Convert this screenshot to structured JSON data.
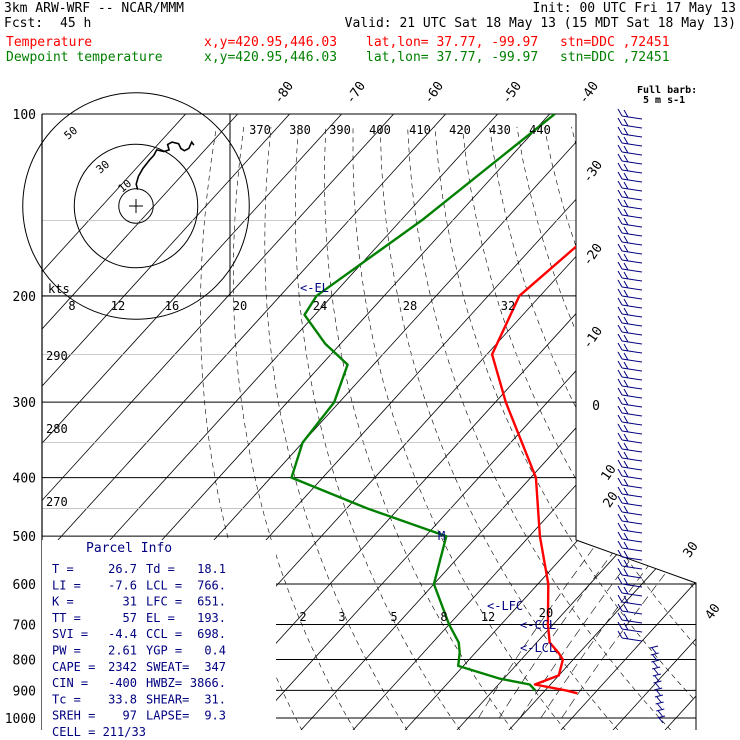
{
  "header": {
    "model": "3km ARW-WRF -- NCAR/MMM",
    "init": "Init: 00 UTC Fri 17 May 13",
    "fcst_label": "Fcst:",
    "fcst_value": "45 h",
    "valid": "Valid: 21 UTC Sat 18 May 13 (15 MDT Sat 18 May 13)"
  },
  "legend": [
    {
      "name": "Temperature",
      "xy": "x,y=420.95,446.03",
      "latlon": "lat,lon= 37.77, -99.97",
      "stn": "stn=DDC ,72451",
      "color": "#ff0000"
    },
    {
      "name": "Dewpoint temperature",
      "xy": "x,y=420.95,446.03",
      "latlon": "lat,lon= 37.77, -99.97",
      "stn": "stn=DDC ,72451",
      "color": "#008000"
    }
  ],
  "barb_note": {
    "line1": "Full barb:",
    "line2": "5 m s-1"
  },
  "chart_data": {
    "type": "line",
    "chart_kind": "skew-T log-p sounding",
    "pressure_levels": [
      "100",
      "200",
      "300",
      "400",
      "500",
      "600",
      "700",
      "800",
      "900",
      "1000"
    ],
    "isotherm_labels": [
      "-80",
      "-70",
      "-60",
      "-50",
      "-40",
      "-30",
      "-20",
      "-10",
      "0",
      "10",
      "20",
      "30",
      "40"
    ],
    "theta_labels": [
      "370",
      "380",
      "390",
      "400",
      "410",
      "420",
      "430",
      "440"
    ],
    "hodo_speed_labels": [
      "8",
      "12",
      "16",
      "20",
      "24",
      "28",
      "32"
    ],
    "hodo_axis_label": "kts",
    "hodo_ring_labels": [
      "10",
      "30",
      "50"
    ],
    "mixing_ratio_labels": [
      "2",
      "3",
      "5",
      "8",
      "12",
      "20"
    ],
    "theta_left_labels": [
      "290",
      "280",
      "270"
    ],
    "parcel_labels": {
      "el": "<-EL",
      "lfc": "<-LFC",
      "ccl": "<-CCL",
      "lcl": "<-LCL",
      "m": "M"
    },
    "series": [
      {
        "name": "Temperature",
        "color": "#ff0000",
        "points": [
          [
            100,
            -46
          ],
          [
            150,
            -50.5
          ],
          [
            200,
            -54
          ],
          [
            250,
            -49
          ],
          [
            300,
            -38
          ],
          [
            400,
            -19
          ],
          [
            500,
            -8
          ],
          [
            600,
            2
          ],
          [
            700,
            9
          ],
          [
            750,
            12.5
          ],
          [
            780,
            16
          ],
          [
            800,
            18
          ],
          [
            850,
            20
          ],
          [
            880,
            17
          ],
          [
            900,
            24
          ],
          [
            910,
            26.7
          ]
        ]
      },
      {
        "name": "Dewpoint temperature",
        "color": "#008000",
        "points": [
          [
            100,
            -79
          ],
          [
            150,
            -86
          ],
          [
            200,
            -93
          ],
          [
            215,
            -92
          ],
          [
            240,
            -83
          ],
          [
            260,
            -75
          ],
          [
            300,
            -71
          ],
          [
            350,
            -70
          ],
          [
            400,
            -66
          ],
          [
            450,
            -46
          ],
          [
            500,
            -26
          ],
          [
            600,
            -20
          ],
          [
            700,
            -10
          ],
          [
            750,
            -5
          ],
          [
            780,
            -3
          ],
          [
            820,
            -1
          ],
          [
            860,
            9
          ],
          [
            880,
            16
          ],
          [
            900,
            18.1
          ]
        ]
      }
    ],
    "hodograph": [
      [
        -1.0,
        -1.5
      ],
      [
        -1.2,
        -0.8
      ],
      [
        -0.9,
        0.2
      ],
      [
        -0.3,
        1.2
      ],
      [
        0.6,
        2.3
      ],
      [
        1.2,
        2.9
      ],
      [
        1.6,
        3.6
      ],
      [
        2.6,
        3.4
      ],
      [
        3.3,
        3.6
      ],
      [
        3.1,
        4.3
      ],
      [
        3.7,
        4.6
      ],
      [
        4.6,
        4.4
      ],
      [
        4.9,
        3.8
      ],
      [
        5.4,
        3.5
      ],
      [
        6.0,
        3.8
      ],
      [
        6.4,
        4.6
      ],
      [
        6.7,
        4.2
      ]
    ]
  },
  "parcel_info": {
    "title": "Parcel Info",
    "rows": [
      [
        "T  =",
        "26.7",
        "Td =",
        "18.1"
      ],
      [
        "LI =",
        "-7.6",
        "LCL =",
        "766."
      ],
      [
        "K  =",
        "31",
        "LFC =",
        "651."
      ],
      [
        "TT =",
        "57",
        "EL =",
        "193."
      ],
      [
        "SVI =",
        "-4.4",
        "CCL =",
        "698."
      ],
      [
        "PW =",
        "2.61",
        "YGP =",
        "0.4"
      ],
      [
        "CAPE =",
        "2342",
        "SWEAT=",
        "347"
      ],
      [
        "CIN =",
        "-400",
        "HWBZ=",
        "3866."
      ],
      [
        "Tc =",
        "33.8",
        "SHEAR=",
        "31."
      ],
      [
        "SREH =",
        "97",
        "LAPSE=",
        "9.3"
      ]
    ],
    "cell": "CELL = 211/33"
  }
}
